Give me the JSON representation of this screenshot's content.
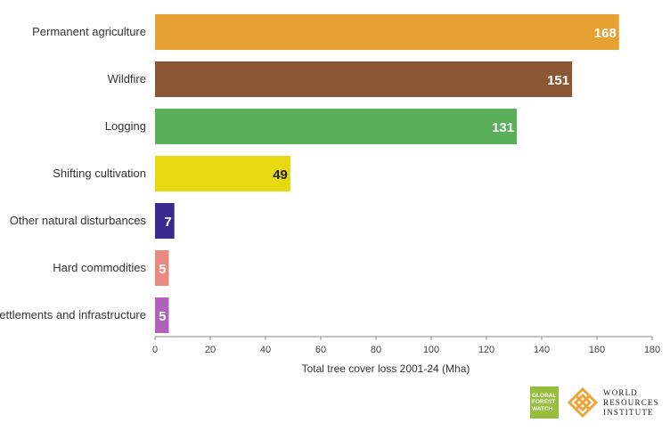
{
  "chart_data": {
    "type": "bar",
    "orientation": "horizontal",
    "categories": [
      "Permanent agriculture",
      "Wildfire",
      "Logging",
      "Shifting cultivation",
      "Other natural disturbances",
      "Hard commodities",
      "Settlements and infrastructure"
    ],
    "values": [
      168,
      151,
      131,
      49,
      7,
      5,
      5
    ],
    "value_labels": [
      "168",
      "151",
      "131",
      "49",
      "7",
      "5",
      "5"
    ],
    "colors": [
      "#e5a232",
      "#8b5732",
      "#5aaf5b",
      "#e8d812",
      "#3a2a90",
      "#e88a80",
      "#b061ba"
    ],
    "label_colors": [
      "#ffffff",
      "#ffffff",
      "#ffffff",
      "#222222",
      "#ffffff",
      "#ffffff",
      "#ffffff"
    ],
    "xlabel": "Total tree cover loss 2001-24 (Mha)",
    "xlim": [
      0,
      180
    ],
    "xticks": [
      "0",
      "20",
      "40",
      "60",
      "80",
      "100",
      "120",
      "140",
      "160",
      "180"
    ],
    "grid": false
  },
  "logos": {
    "gfw": [
      "GLOBAL",
      "FOREST",
      "WATCH"
    ],
    "wri": [
      "WORLD",
      "RESOURCES",
      "INSTITUTE"
    ]
  }
}
